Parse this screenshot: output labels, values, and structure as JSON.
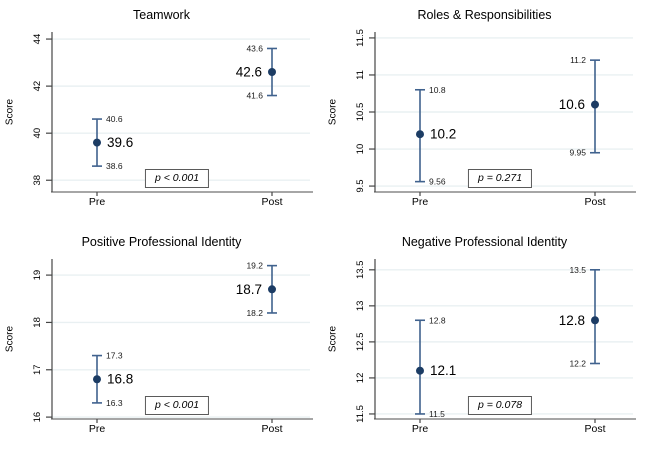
{
  "page": {
    "background": "#ffffff"
  },
  "styles": {
    "marker_color": "#1c3c64",
    "errorbar_color": "#40628e",
    "gridline_color": "#e9f0f2",
    "yaxis_color": "#454545",
    "xaxis_color": "#9a9a9a",
    "text_color": "#000000"
  },
  "chart_data": [
    {
      "type": "scatter",
      "title": "Teamwork",
      "ylabel": "Score",
      "categories": [
        "Pre",
        "Post"
      ],
      "p_label": "p < 0.001",
      "ylim": [
        37.5,
        44.3
      ],
      "yticks": [
        {
          "value": 38,
          "label": "38"
        },
        {
          "value": 40,
          "label": "40"
        },
        {
          "value": 42,
          "label": "42"
        },
        {
          "value": 44,
          "label": "44"
        }
      ],
      "points": [
        {
          "category": "Pre",
          "mean": 39.6,
          "ci_low": 38.6,
          "ci_high": 40.6,
          "mean_label": "39.6",
          "ci_low_label": "38.6",
          "ci_high_label": "40.6",
          "label_side": "right"
        },
        {
          "category": "Post",
          "mean": 42.6,
          "ci_low": 41.6,
          "ci_high": 43.6,
          "mean_label": "42.6",
          "ci_low_label": "41.6",
          "ci_high_label": "43.6",
          "label_side": "left"
        }
      ]
    },
    {
      "type": "scatter",
      "title": "Roles & Responsibilities",
      "ylabel": "Score",
      "categories": [
        "Pre",
        "Post"
      ],
      "p_label": "p = 0.271",
      "ylim": [
        9.42,
        11.58
      ],
      "yticks": [
        {
          "value": 9.5,
          "label": "9.5"
        },
        {
          "value": 10,
          "label": "10"
        },
        {
          "value": 10.5,
          "label": "10.5"
        },
        {
          "value": 11,
          "label": "11"
        },
        {
          "value": 11.5,
          "label": "11.5"
        }
      ],
      "points": [
        {
          "category": "Pre",
          "mean": 10.2,
          "ci_low": 9.56,
          "ci_high": 10.8,
          "mean_label": "10.2",
          "ci_low_label": "9.56",
          "ci_high_label": "10.8",
          "label_side": "right"
        },
        {
          "category": "Post",
          "mean": 10.6,
          "ci_low": 9.95,
          "ci_high": 11.2,
          "mean_label": "10.6",
          "ci_low_label": "9.95",
          "ci_high_label": "11.2",
          "label_side": "left"
        }
      ]
    },
    {
      "type": "scatter",
      "title": "Positive Professional Identity",
      "ylabel": "Score",
      "categories": [
        "Pre",
        "Post"
      ],
      "p_label": "p < 0.001",
      "ylim": [
        15.96,
        19.34
      ],
      "yticks": [
        {
          "value": 16,
          "label": "16"
        },
        {
          "value": 17,
          "label": "17"
        },
        {
          "value": 18,
          "label": "18"
        },
        {
          "value": 19,
          "label": "19"
        }
      ],
      "points": [
        {
          "category": "Pre",
          "mean": 16.8,
          "ci_low": 16.3,
          "ci_high": 17.3,
          "mean_label": "16.8",
          "ci_low_label": "16.3",
          "ci_high_label": "17.3",
          "label_side": "right"
        },
        {
          "category": "Post",
          "mean": 18.7,
          "ci_low": 18.2,
          "ci_high": 19.2,
          "mean_label": "18.7",
          "ci_low_label": "18.2",
          "ci_high_label": "19.2",
          "label_side": "left"
        }
      ]
    },
    {
      "type": "scatter",
      "title": "Negative Professional Identity",
      "ylabel": "Score",
      "categories": [
        "Pre",
        "Post"
      ],
      "p_label": "p = 0.078",
      "ylim": [
        11.43,
        13.65
      ],
      "yticks": [
        {
          "value": 11.5,
          "label": "11.5"
        },
        {
          "value": 12,
          "label": "12"
        },
        {
          "value": 12.5,
          "label": "12.5"
        },
        {
          "value": 13,
          "label": "13"
        },
        {
          "value": 13.5,
          "label": "13.5"
        }
      ],
      "points": [
        {
          "category": "Pre",
          "mean": 12.1,
          "ci_low": 11.5,
          "ci_high": 12.8,
          "mean_label": "12.1",
          "ci_low_label": "11.5",
          "ci_high_label": "12.8",
          "label_side": "right"
        },
        {
          "category": "Post",
          "mean": 12.8,
          "ci_low": 12.2,
          "ci_high": 13.5,
          "mean_label": "12.8",
          "ci_low_label": "12.2",
          "ci_high_label": "13.5",
          "label_side": "left"
        }
      ]
    }
  ]
}
